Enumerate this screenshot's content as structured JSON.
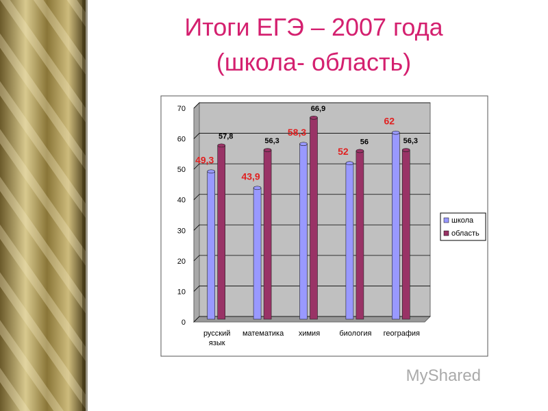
{
  "chart_data": {
    "type": "bar",
    "title": "Итоги ЕГЭ – 2007 года",
    "subtitle": "(школа- область)",
    "categories": [
      "русский язык",
      "математика",
      "химия",
      "биология",
      "география"
    ],
    "series": [
      {
        "name": "школа",
        "color": "#9999ff",
        "values": [
          49.3,
          43.9,
          58.3,
          52,
          62
        ],
        "value_labels": [
          "49,3",
          "43,9",
          "58,3",
          "52",
          "62"
        ]
      },
      {
        "name": "область",
        "color": "#993366",
        "values": [
          57.8,
          56.3,
          66.9,
          56,
          56.3
        ],
        "value_labels": [
          "57,8",
          "56,3",
          "66,9",
          "56",
          "56,3"
        ]
      }
    ],
    "ylim": [
      0,
      70
    ],
    "yticks": [
      0,
      10,
      20,
      30,
      40,
      50,
      60,
      70
    ],
    "grid": true,
    "legend": "right"
  },
  "watermark": "MyShared"
}
